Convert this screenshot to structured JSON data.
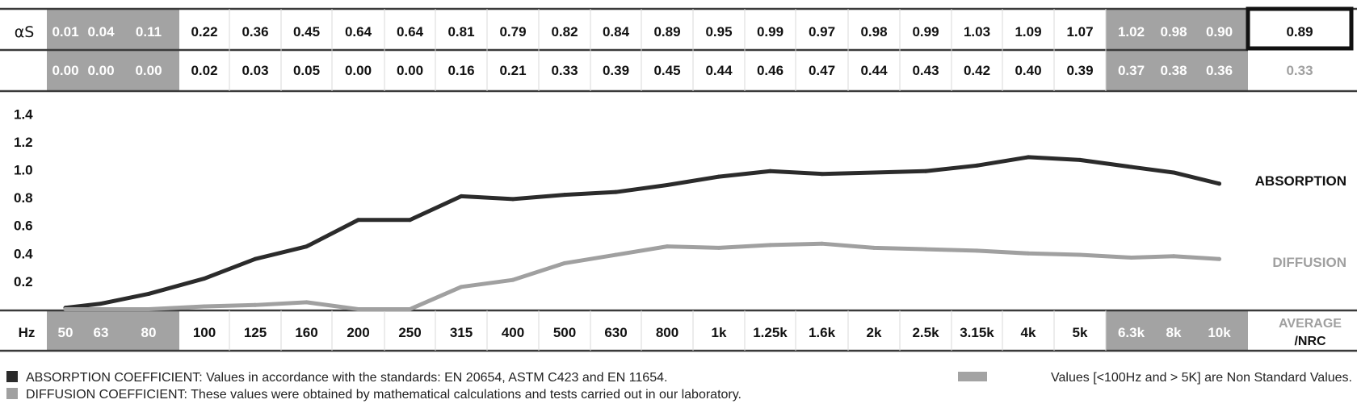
{
  "chart_data": {
    "type": "line",
    "row_label": "αS",
    "x_axis_label": "Hz",
    "categories": [
      "50",
      "63",
      "80",
      "100",
      "125",
      "160",
      "200",
      "250",
      "315",
      "400",
      "500",
      "630",
      "800",
      "1k",
      "1.25k",
      "1.6k",
      "2k",
      "2.5k",
      "3.15k",
      "4k",
      "5k",
      "6.3k",
      "8k",
      "10k"
    ],
    "series": [
      {
        "name": "ABSORPTION",
        "color": "#2b2b2b",
        "values": [
          0.01,
          0.04,
          0.11,
          0.22,
          0.36,
          0.45,
          0.64,
          0.64,
          0.81,
          0.79,
          0.82,
          0.84,
          0.89,
          0.95,
          0.99,
          0.97,
          0.98,
          0.99,
          1.03,
          1.09,
          1.07,
          1.02,
          0.98,
          0.9
        ],
        "average": "0.89"
      },
      {
        "name": "DIFFUSION",
        "color": "#a0a0a0",
        "values": [
          0.0,
          0.0,
          0.0,
          0.02,
          0.03,
          0.05,
          0.0,
          0.0,
          0.16,
          0.21,
          0.33,
          0.39,
          0.45,
          0.44,
          0.46,
          0.47,
          0.44,
          0.43,
          0.42,
          0.4,
          0.39,
          0.37,
          0.38,
          0.36
        ],
        "average": "0.33"
      }
    ],
    "value_labels": {
      "ABSORPTION": [
        "0.01",
        "0.04",
        "0.11",
        "0.22",
        "0.36",
        "0.45",
        "0.64",
        "0.64",
        "0.81",
        "0.79",
        "0.82",
        "0.84",
        "0.89",
        "0.95",
        "0.99",
        "0.97",
        "0.98",
        "0.99",
        "1.03",
        "1.09",
        "1.07",
        "1.02",
        "0.98",
        "0.90"
      ],
      "DIFFUSION": [
        "0.00",
        "0.00",
        "0.00",
        "0.02",
        "0.03",
        "0.05",
        "0.00",
        "0.00",
        "0.16",
        "0.21",
        "0.33",
        "0.39",
        "0.45",
        "0.44",
        "0.46",
        "0.47",
        "0.44",
        "0.43",
        "0.42",
        "0.40",
        "0.39",
        "0.37",
        "0.38",
        "0.36"
      ]
    },
    "non_standard_categories": [
      "50",
      "63",
      "80",
      "6.3k",
      "8k",
      "10k"
    ],
    "y_ticks": [
      "1.4",
      "1.2",
      "1.0",
      "0.8",
      "0.6",
      "0.4",
      "0.2"
    ],
    "ylim": [
      0,
      1.5
    ],
    "average_label_line1": "AVERAGE",
    "average_label_line2": "/NRC",
    "grid": false
  },
  "legend": {
    "absorption_text": "ABSORPTION COEFFICIENT: Values in accordance with the standards: EN 20654, ASTM C423 and EN 11654.",
    "diffusion_text": "DIFFUSION COEFFICIENT: These values were obtained by mathematical calculations and tests carried out in our laboratory.",
    "nonstandard_text": "Values [<100Hz and > 5K] are Non Standard Values."
  },
  "colors": {
    "absorption": "#2b2b2b",
    "diffusion": "#a0a0a0",
    "nonstandard_band": "#a3a3a3",
    "rule": "#3a3a3a"
  }
}
